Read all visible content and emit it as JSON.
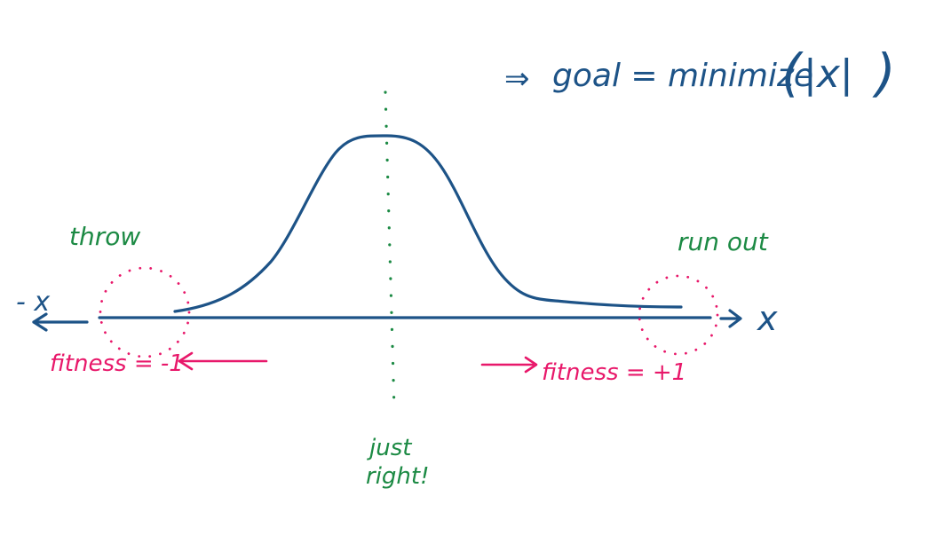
{
  "goal": {
    "prefix": "⇒",
    "text": "goal = minimize",
    "paren_open": "(",
    "inner": "|x|",
    "paren_close": ")"
  },
  "axis": {
    "neg_label": "- x",
    "pos_label": "x"
  },
  "regions": {
    "left": {
      "label": "throw",
      "fitness": "fitness = -1"
    },
    "right": {
      "label": "run out",
      "fitness": "fitness = +1"
    }
  },
  "center": {
    "line1": "just",
    "line2": "right!"
  },
  "colors": {
    "blue": "#1d5387",
    "green": "#1c8a44",
    "pink": "#e8186a"
  }
}
